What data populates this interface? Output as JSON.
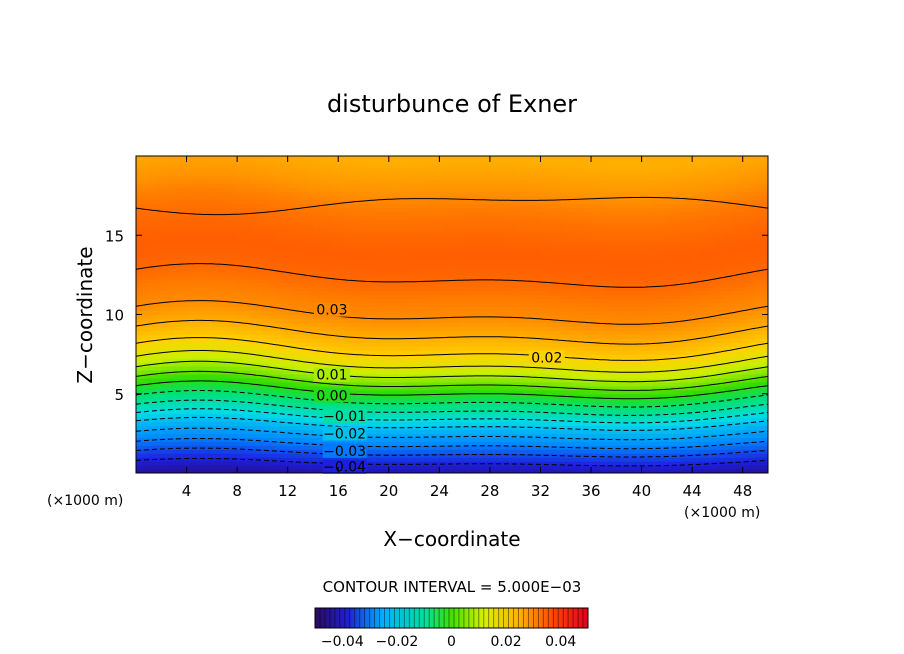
{
  "chart_data": {
    "type": "heatmap",
    "title": "disturbunce of Exner",
    "xlabel": "X−coordinate",
    "ylabel": "Z−coordinate",
    "x_unit": "(×1000 m)",
    "y_unit": "(×1000 m)",
    "xlim": [
      0,
      50
    ],
    "ylim": [
      0,
      20
    ],
    "x_ticks": [
      4,
      8,
      12,
      16,
      20,
      24,
      28,
      32,
      36,
      40,
      44,
      48
    ],
    "y_ticks": [
      5,
      10,
      15
    ],
    "contour_interval_text": "CONTOUR INTERVAL = 5.000E−03",
    "colorbar": {
      "range": [
        -0.05,
        0.05
      ],
      "ticks": [
        "−0.04",
        "−0.02",
        "0",
        "0.02",
        "0.04"
      ],
      "tick_values": [
        -0.04,
        -0.02,
        0,
        0.02,
        0.04
      ]
    },
    "contour_labels": [
      {
        "text": "0.03",
        "x": 15.5,
        "z": 10.3,
        "value": 0.03
      },
      {
        "text": "0.02",
        "x": 32.5,
        "z": 7.3,
        "value": 0.02
      },
      {
        "text": "0.01",
        "x": 15.5,
        "z": 6.2,
        "value": 0.01
      },
      {
        "text": "0.00",
        "x": 15.5,
        "z": 4.9,
        "value": 0.0
      },
      {
        "text": "−0.01",
        "x": 16.5,
        "z": 3.6,
        "value": -0.01
      },
      {
        "text": "−0.02",
        "x": 16.5,
        "z": 2.5,
        "value": -0.02
      },
      {
        "text": "−0.03",
        "x": 16.5,
        "z": 1.4,
        "value": -0.03
      },
      {
        "text": "−0.04",
        "x": 16.5,
        "z": 0.4,
        "value": -0.04
      }
    ],
    "field_profile": {
      "z": [
        0,
        1,
        2,
        3,
        4,
        5,
        6,
        7,
        8,
        9,
        10,
        11,
        12,
        13,
        14,
        15,
        16,
        17,
        18,
        19,
        20
      ],
      "value": [
        -0.045,
        -0.037,
        -0.028,
        -0.02,
        -0.01,
        -0.001,
        0.008,
        0.016,
        0.022,
        0.026,
        0.03,
        0.032,
        0.0345,
        0.036,
        0.0365,
        0.0355,
        0.034,
        0.032,
        0.029,
        0.027,
        0.025
      ]
    }
  }
}
